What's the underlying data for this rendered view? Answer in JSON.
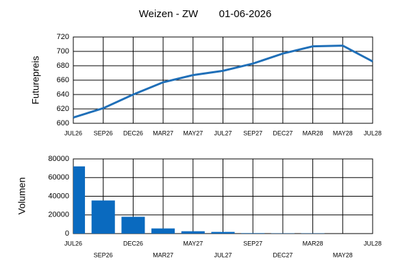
{
  "chart_data": [
    {
      "type": "line",
      "title": "Weizen - ZW",
      "subtitle": "01-06-2026",
      "y_label": "Futurepreis",
      "categories": [
        "JUL26",
        "SEP26",
        "DEC26",
        "MAR27",
        "MAY27",
        "JUL27",
        "SEP27",
        "DEC27",
        "MAR28",
        "MAY28",
        "JUL28"
      ],
      "values": [
        608,
        621,
        640,
        657,
        667,
        673,
        683,
        697,
        707,
        708,
        686
      ],
      "color": "#1f6fb8",
      "ylim": [
        600,
        720
      ],
      "yticks": [
        600,
        620,
        640,
        660,
        680,
        700,
        720
      ],
      "grid": true
    },
    {
      "type": "bar",
      "y_label": "Volumen",
      "categories": [
        "JUL26",
        "SEP26",
        "DEC26",
        "MAR27",
        "MAY27",
        "JUL27",
        "SEP27",
        "DEC27",
        "MAR28",
        "MAY28",
        "JUL28"
      ],
      "values": [
        72000,
        35500,
        18000,
        5500,
        2500,
        1800,
        500,
        300,
        300,
        0,
        0
      ],
      "color": "#0a6abf",
      "ylim": [
        0,
        80000
      ],
      "yticks": [
        0,
        20000,
        40000,
        60000,
        80000
      ],
      "grid": true
    }
  ]
}
